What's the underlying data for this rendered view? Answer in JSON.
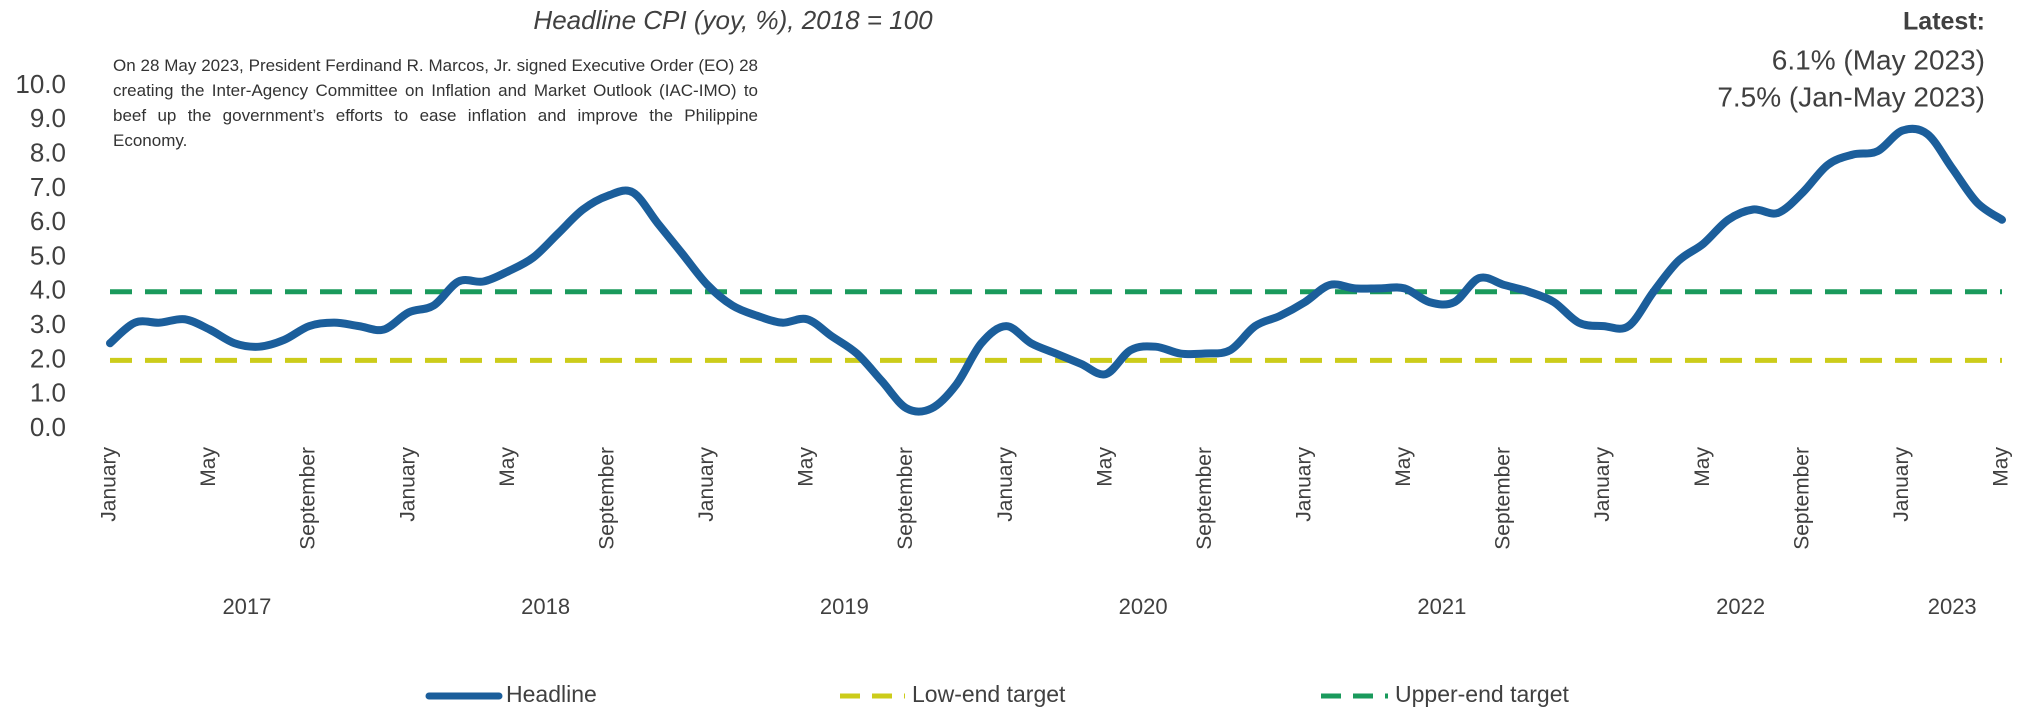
{
  "chart_data": {
    "type": "line",
    "title": "Headline CPI (yoy, %), 2018 = 100",
    "annotation": "On 28 May 2023, President Ferdinand R. Marcos, Jr. signed Executive Order (EO) 28 creating the Inter-Agency Committee on Inflation and Market Outlook (IAC-IMO) to beef up the government’s efforts to ease inflation and improve the Philippine Economy.",
    "latest": [
      "Latest:",
      "6.1% (May 2023)",
      "7.5% (Jan-May 2023)"
    ],
    "categories": [
      "January",
      null,
      null,
      null,
      "May",
      null,
      null,
      null,
      "September",
      null,
      null,
      null,
      "January",
      null,
      null,
      null,
      "May",
      null,
      null,
      null,
      "September",
      null,
      null,
      null,
      "January",
      null,
      null,
      null,
      "May",
      null,
      null,
      null,
      "September",
      null,
      null,
      null,
      "January",
      null,
      null,
      null,
      "May",
      null,
      null,
      null,
      "September",
      null,
      null,
      null,
      "January",
      null,
      null,
      null,
      "May",
      null,
      null,
      null,
      "September",
      null,
      null,
      null,
      "January",
      null,
      null,
      null,
      "May",
      null,
      null,
      null,
      "September",
      null,
      null,
      null,
      "January",
      null,
      null,
      null,
      "May"
    ],
    "year_labels": [
      "2017",
      "2018",
      "2019",
      "2020",
      "2021",
      "2022",
      "2023"
    ],
    "ylim": [
      0,
      10
    ],
    "yticks": [
      {
        "value": 0,
        "label": "0.0"
      },
      {
        "value": 1,
        "label": "1.0"
      },
      {
        "value": 2,
        "label": "2.0"
      },
      {
        "value": 3,
        "label": "3.0"
      },
      {
        "value": 4,
        "label": "4.0"
      },
      {
        "value": 5,
        "label": "5.0"
      },
      {
        "value": 6,
        "label": "6.0"
      },
      {
        "value": 7,
        "label": "7.0"
      },
      {
        "value": 8,
        "label": "8.0"
      },
      {
        "value": 9,
        "label": "9.0"
      },
      {
        "value": 10,
        "label": "10.0"
      }
    ],
    "series": [
      {
        "name": "Headline",
        "color": "#1b5e9b",
        "dashed": false,
        "values": [
          2.5,
          3.1,
          3.1,
          3.2,
          2.9,
          2.5,
          2.4,
          2.6,
          3.0,
          3.1,
          3.0,
          2.9,
          3.4,
          3.6,
          4.3,
          4.3,
          4.6,
          5.0,
          5.7,
          6.4,
          6.8,
          6.9,
          6.0,
          5.1,
          4.2,
          3.6,
          3.3,
          3.1,
          3.2,
          2.7,
          2.2,
          1.4,
          0.6,
          0.6,
          1.3,
          2.5,
          3.0,
          2.5,
          2.2,
          1.9,
          1.6,
          2.3,
          2.4,
          2.2,
          2.2,
          2.3,
          3.0,
          3.3,
          3.7,
          4.2,
          4.1,
          4.1,
          4.1,
          3.7,
          3.7,
          4.4,
          4.2,
          4.0,
          3.7,
          3.1,
          3.0,
          3.0,
          4.0,
          4.9,
          5.4,
          6.1,
          6.4,
          6.3,
          6.9,
          7.7,
          8.0,
          8.1,
          8.7,
          8.6,
          7.6,
          6.6,
          6.1
        ]
      },
      {
        "name": "Low-end target",
        "color": "#cccc1a",
        "dashed": true,
        "values": [
          2,
          2,
          2,
          2,
          2,
          2,
          2,
          2,
          2,
          2,
          2,
          2,
          2,
          2,
          2,
          2,
          2,
          2,
          2,
          2,
          2,
          2,
          2,
          2,
          2,
          2,
          2,
          2,
          2,
          2,
          2,
          2,
          2,
          2,
          2,
          2,
          2,
          2,
          2,
          2,
          2,
          2,
          2,
          2,
          2,
          2,
          2,
          2,
          2,
          2,
          2,
          2,
          2,
          2,
          2,
          2,
          2,
          2,
          2,
          2,
          2,
          2,
          2,
          2,
          2,
          2,
          2,
          2,
          2,
          2,
          2,
          2,
          2,
          2,
          2,
          2,
          2
        ]
      },
      {
        "name": "Upper-end target",
        "color": "#1a9a5c",
        "dashed": true,
        "values": [
          4,
          4,
          4,
          4,
          4,
          4,
          4,
          4,
          4,
          4,
          4,
          4,
          4,
          4,
          4,
          4,
          4,
          4,
          4,
          4,
          4,
          4,
          4,
          4,
          4,
          4,
          4,
          4,
          4,
          4,
          4,
          4,
          4,
          4,
          4,
          4,
          4,
          4,
          4,
          4,
          4,
          4,
          4,
          4,
          4,
          4,
          4,
          4,
          4,
          4,
          4,
          4,
          4,
          4,
          4,
          4,
          4,
          4,
          4,
          4,
          4,
          4,
          4,
          4,
          4,
          4,
          4,
          4,
          4,
          4,
          4,
          4,
          4,
          4,
          4,
          4,
          4
        ]
      }
    ],
    "legend": "bottom"
  }
}
